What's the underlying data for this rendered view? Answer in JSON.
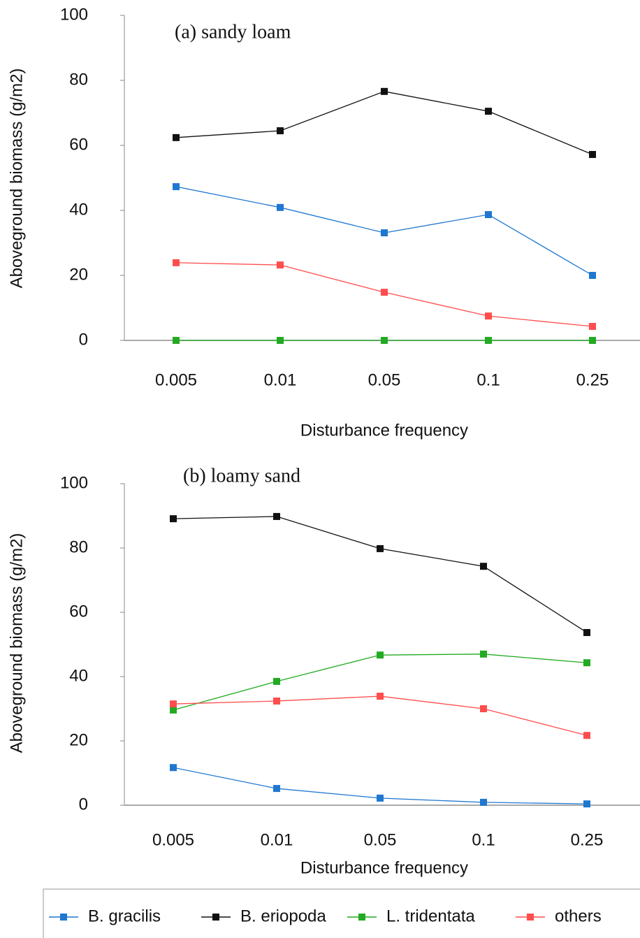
{
  "chart_data": [
    {
      "type": "line",
      "title": "(a) sandy loam",
      "x_label": "Disturbance frequency",
      "y_label": "Aboveground biomass (g/m2)",
      "categories": [
        "0.005",
        "0.01",
        "0.05",
        "0.1",
        "0.25"
      ],
      "ylim": [
        0,
        100
      ],
      "yticks": [
        0,
        20,
        40,
        60,
        80,
        100
      ],
      "series": [
        {
          "name": "B. gracilis",
          "color": "#1f77d0",
          "values": [
            47.3,
            40.9,
            33.1,
            38.7,
            20
          ]
        },
        {
          "name": "B. eriopoda",
          "color": "#111111",
          "values": [
            62.4,
            64.5,
            76.6,
            70.5,
            57.2
          ]
        },
        {
          "name": "L. tridentata",
          "color": "#22aa22",
          "values": [
            0,
            0,
            0,
            0,
            0
          ]
        },
        {
          "name": "others",
          "color": "#ff4d4d",
          "values": [
            23.9,
            23.2,
            14.8,
            7.5,
            4.3
          ]
        }
      ]
    },
    {
      "type": "line",
      "title": "(b) loamy sand",
      "x_label": "Disturbance frequency",
      "y_label": "Aboveground biomass (g/m2)",
      "categories": [
        "0.005",
        "0.01",
        "0.05",
        "0.1",
        "0.25"
      ],
      "ylim": [
        0,
        100
      ],
      "yticks": [
        0,
        20,
        40,
        60,
        80,
        100
      ],
      "series": [
        {
          "color": "#1f77d0",
          "values": [
            11.7,
            5.2,
            2.2,
            0.9,
            0.4
          ]
        },
        {
          "color": "#111111",
          "values": [
            89.1,
            89.8,
            79.8,
            74.3,
            53.7
          ]
        },
        {
          "color": "#22aa22",
          "values": [
            29.6,
            38.5,
            46.7,
            47,
            44.3
          ]
        },
        {
          "color": "#ff4d4d",
          "values": [
            31.5,
            32.4,
            33.9,
            30,
            21.7
          ]
        }
      ]
    }
  ]
}
